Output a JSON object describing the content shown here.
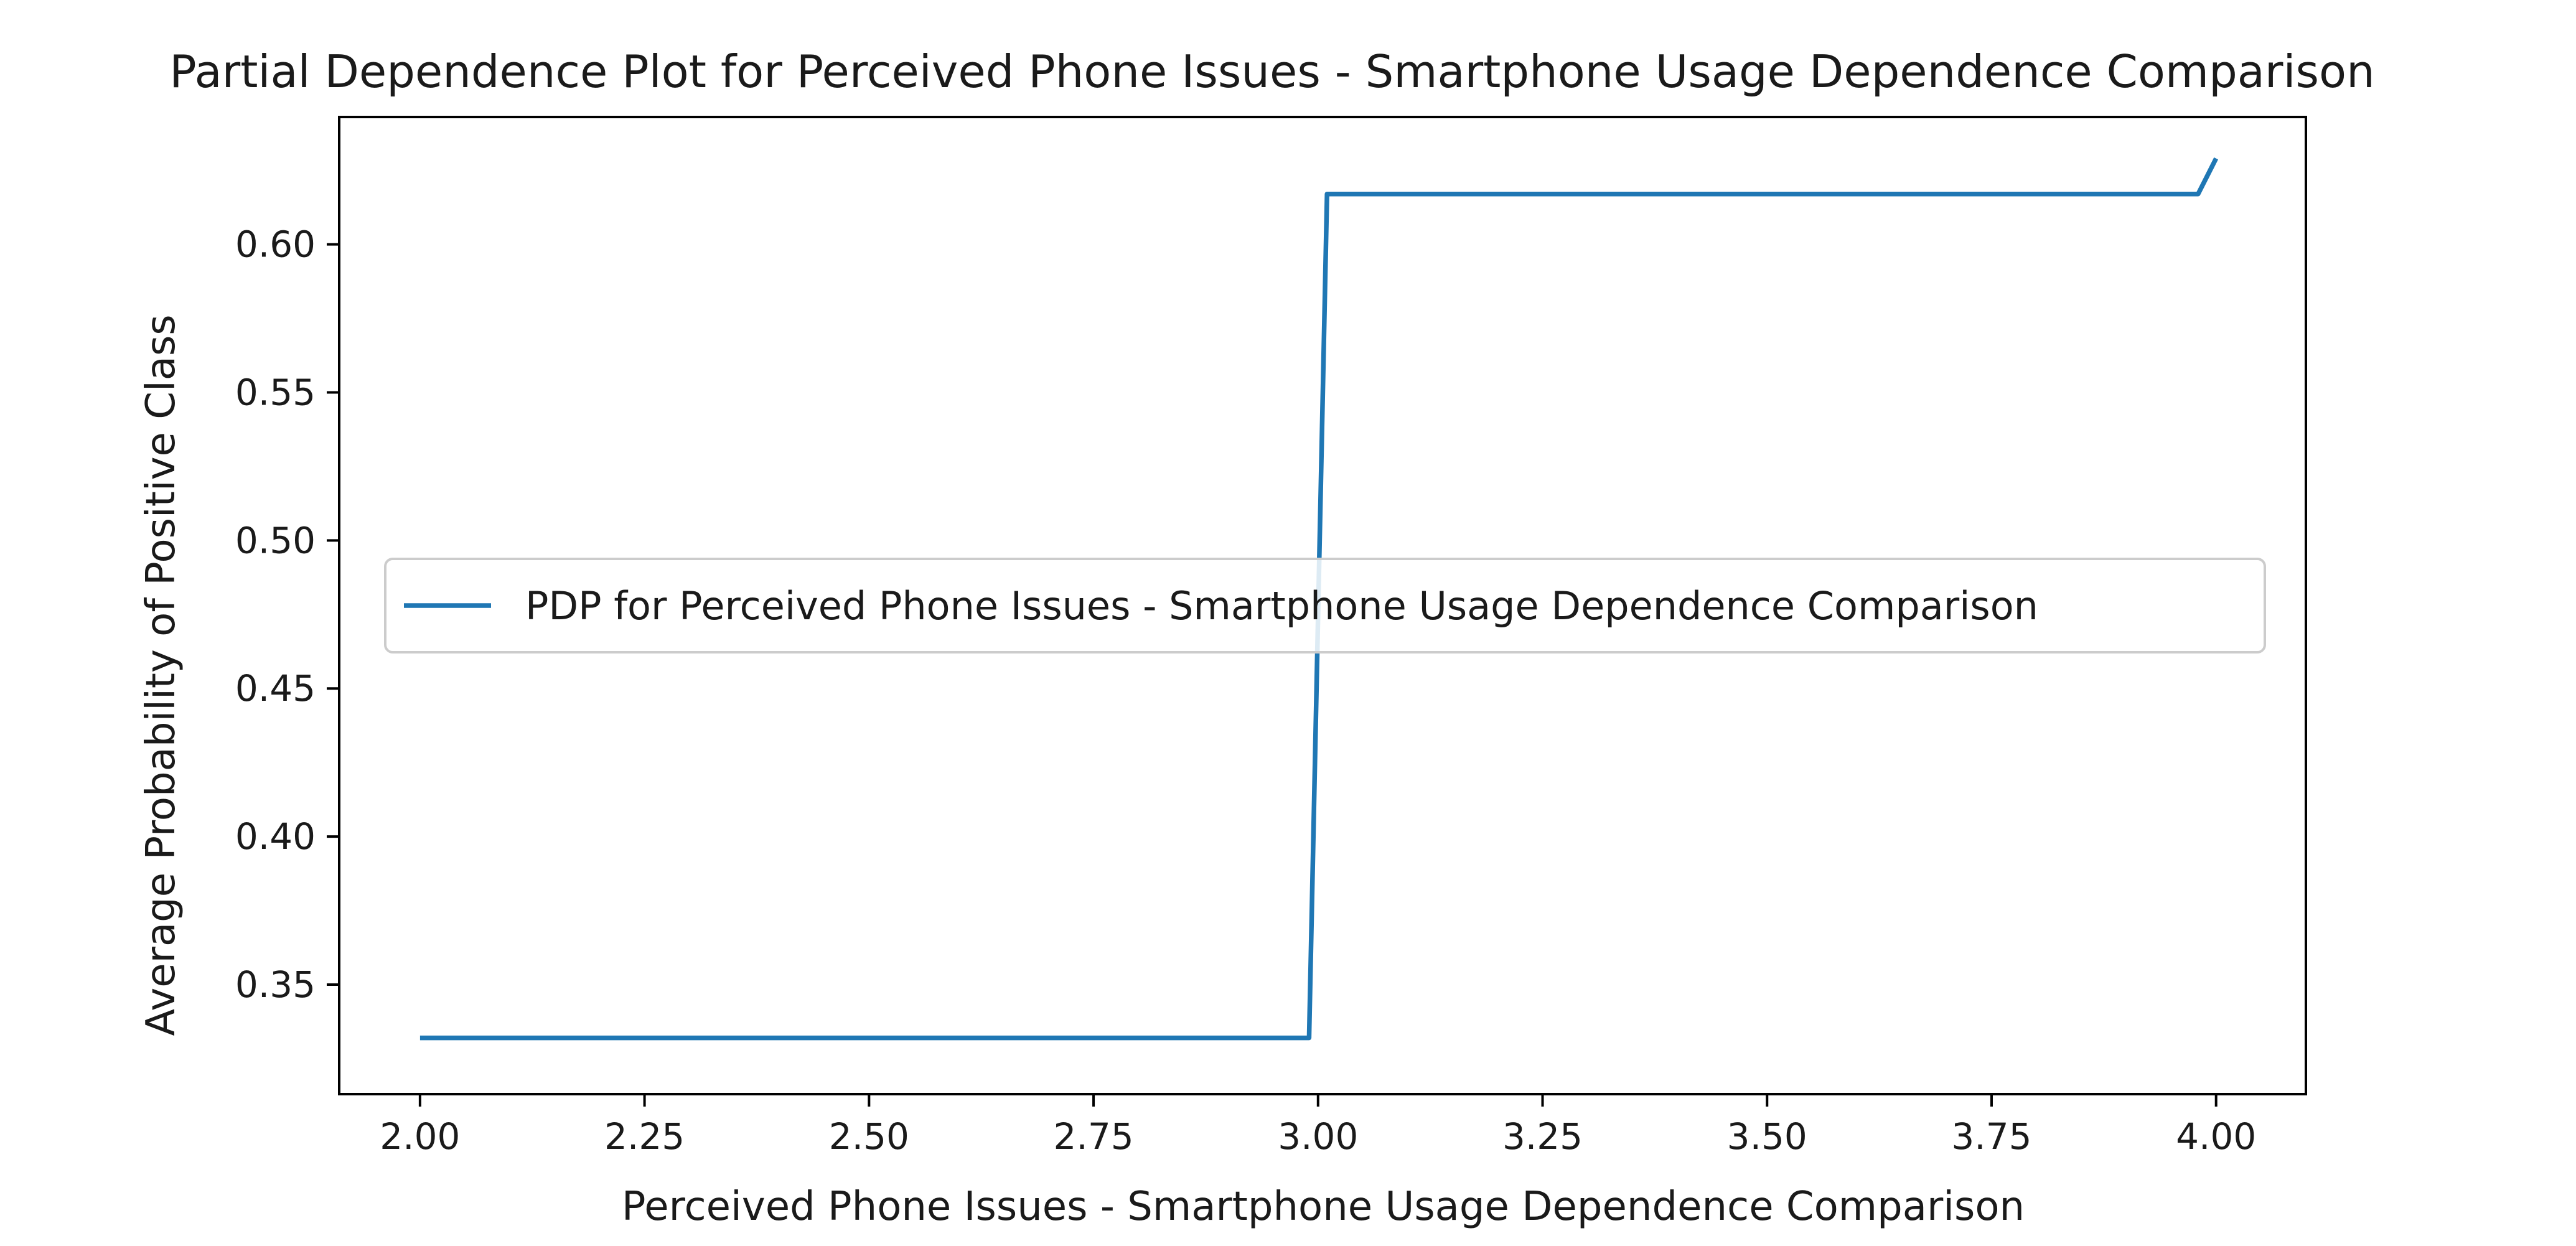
{
  "chart_data": {
    "type": "line",
    "title": "Partial Dependence Plot for Perceived Phone Issues - Smartphone Usage Dependence Comparison",
    "xlabel": "Perceived Phone Issues - Smartphone Usage Dependence Comparison",
    "ylabel": "Average Probability of Positive Class",
    "xlim": [
      1.91,
      4.1
    ],
    "ylim": [
      0.313,
      0.643
    ],
    "x_ticks": [
      2.0,
      2.25,
      2.5,
      2.75,
      3.0,
      3.25,
      3.5,
      3.75,
      4.0
    ],
    "x_tick_labels": [
      "2.00",
      "2.25",
      "2.50",
      "2.75",
      "3.00",
      "3.25",
      "3.50",
      "3.75",
      "4.00"
    ],
    "y_ticks": [
      0.35,
      0.4,
      0.45,
      0.5,
      0.55,
      0.6
    ],
    "y_tick_labels": [
      "0.35",
      "0.40",
      "0.45",
      "0.50",
      "0.55",
      "0.60"
    ],
    "grid": false,
    "legend": {
      "placement": "center"
    },
    "series": [
      {
        "name": "PDP for Perceived Phone Issues - Smartphone Usage Dependence Comparison",
        "color": "#1f77b4",
        "x": [
          2.0,
          2.99,
          3.01,
          3.98,
          4.0
        ],
        "y": [
          0.332,
          0.332,
          0.617,
          0.617,
          0.629
        ]
      }
    ]
  }
}
